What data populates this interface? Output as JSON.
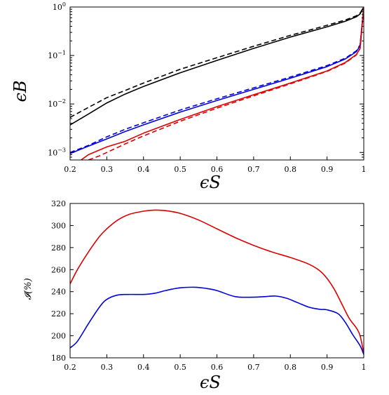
{
  "chart_data": [
    {
      "type": "line",
      "xlabel": "ϵS",
      "ylabel": "ϵB",
      "xlim": [
        0.2,
        1.0
      ],
      "ylim": [
        0.0007,
        1.0
      ],
      "yscale": "log",
      "grid": false,
      "x_ticks": [
        "0.2",
        "0.3",
        "0.4",
        "0.5",
        "0.6",
        "0.7",
        "0.8",
        "0.9",
        "1"
      ],
      "y_ticks": [
        {
          "base": "10",
          "exp": "0"
        },
        {
          "base": "10",
          "exp": "−1"
        },
        {
          "base": "10",
          "exp": "−2"
        },
        {
          "base": "10",
          "exp": "−3"
        }
      ],
      "series": [
        {
          "style": "solid",
          "color": "#000000",
          "x": [
            0.2,
            0.25,
            0.3,
            0.35,
            0.4,
            0.5,
            0.6,
            0.7,
            0.8,
            0.9,
            0.95,
            0.98,
            0.99,
            1.0
          ],
          "y": [
            0.0037,
            0.0062,
            0.0105,
            0.016,
            0.023,
            0.044,
            0.079,
            0.14,
            0.24,
            0.39,
            0.51,
            0.63,
            0.72,
            1.0
          ]
        },
        {
          "style": "dashed",
          "color": "#000000",
          "x": [
            0.2,
            0.25,
            0.3,
            0.35,
            0.4,
            0.5,
            0.6,
            0.7,
            0.8,
            0.9,
            0.95,
            0.98,
            0.99,
            1.0
          ],
          "y": [
            0.0053,
            0.0085,
            0.0135,
            0.019,
            0.027,
            0.052,
            0.09,
            0.155,
            0.26,
            0.42,
            0.54,
            0.66,
            0.75,
            1.0
          ]
        },
        {
          "style": "solid",
          "color": "#0000dd",
          "x": [
            0.2,
            0.25,
            0.3,
            0.35,
            0.4,
            0.5,
            0.6,
            0.7,
            0.8,
            0.9,
            0.95,
            0.98,
            0.99,
            1.0
          ],
          "y": [
            0.00095,
            0.00135,
            0.0019,
            0.0027,
            0.0037,
            0.0068,
            0.0118,
            0.02,
            0.034,
            0.059,
            0.085,
            0.12,
            0.16,
            1.0
          ]
        },
        {
          "style": "dashed",
          "color": "#0000dd",
          "x": [
            0.2,
            0.25,
            0.3,
            0.35,
            0.4,
            0.5,
            0.6,
            0.7,
            0.8,
            0.9,
            0.95,
            0.98,
            0.99,
            1.0
          ],
          "y": [
            0.001,
            0.0014,
            0.0021,
            0.003,
            0.0041,
            0.0075,
            0.0128,
            0.0215,
            0.036,
            0.062,
            0.088,
            0.125,
            0.165,
            1.0
          ]
        },
        {
          "style": "solid",
          "color": "#dd0000",
          "x": [
            0.23,
            0.25,
            0.3,
            0.35,
            0.4,
            0.5,
            0.6,
            0.7,
            0.8,
            0.9,
            0.95,
            0.98,
            0.99,
            1.0
          ],
          "y": [
            0.0007,
            0.0009,
            0.0013,
            0.0017,
            0.0025,
            0.0048,
            0.0088,
            0.0155,
            0.027,
            0.048,
            0.072,
            0.105,
            0.14,
            1.0
          ]
        },
        {
          "style": "dashed",
          "color": "#dd0000",
          "x": [
            0.25,
            0.28,
            0.3,
            0.35,
            0.4,
            0.5,
            0.6,
            0.7,
            0.8,
            0.9,
            0.95,
            0.98,
            0.99,
            1.0
          ],
          "y": [
            0.0007,
            0.00085,
            0.001,
            0.0015,
            0.0022,
            0.0044,
            0.0082,
            0.0147,
            0.026,
            0.047,
            0.07,
            0.103,
            0.14,
            1.0
          ]
        }
      ]
    },
    {
      "type": "line",
      "xlabel": "ϵS",
      "ylabel": "𝓘(%)",
      "xlim": [
        0.2,
        1.0
      ],
      "ylim": [
        180,
        320
      ],
      "grid": false,
      "x_ticks": [
        "0.2",
        "0.3",
        "0.4",
        "0.5",
        "0.6",
        "0.7",
        "0.8",
        "0.9",
        "1"
      ],
      "y_ticks": [
        "320",
        "300",
        "280",
        "260",
        "240",
        "220",
        "200",
        "180"
      ],
      "series": [
        {
          "color": "#dd0000",
          "x": [
            0.2,
            0.22,
            0.25,
            0.28,
            0.3,
            0.33,
            0.36,
            0.4,
            0.43,
            0.46,
            0.5,
            0.55,
            0.6,
            0.65,
            0.7,
            0.75,
            0.8,
            0.85,
            0.88,
            0.9,
            0.92,
            0.94,
            0.96,
            0.98,
            0.99,
            1.0
          ],
          "y": [
            247,
            260,
            276,
            290,
            297,
            305,
            310,
            313,
            314,
            313.5,
            311,
            305,
            297,
            289,
            282,
            276,
            271,
            265,
            259,
            252,
            242,
            229,
            216,
            207,
            200,
            184
          ]
        },
        {
          "color": "#0000dd",
          "x": [
            0.2,
            0.22,
            0.25,
            0.28,
            0.3,
            0.33,
            0.36,
            0.4,
            0.43,
            0.46,
            0.5,
            0.54,
            0.57,
            0.6,
            0.65,
            0.7,
            0.73,
            0.76,
            0.79,
            0.82,
            0.85,
            0.88,
            0.9,
            0.93,
            0.95,
            0.97,
            0.99,
            1.0
          ],
          "y": [
            189,
            195,
            211,
            226,
            233,
            237,
            237.5,
            237.5,
            238.5,
            241,
            243.5,
            244,
            243,
            241,
            235.5,
            235,
            235.5,
            236,
            234,
            230,
            226,
            224,
            223.5,
            220,
            212,
            201,
            191,
            183
          ]
        }
      ]
    }
  ]
}
